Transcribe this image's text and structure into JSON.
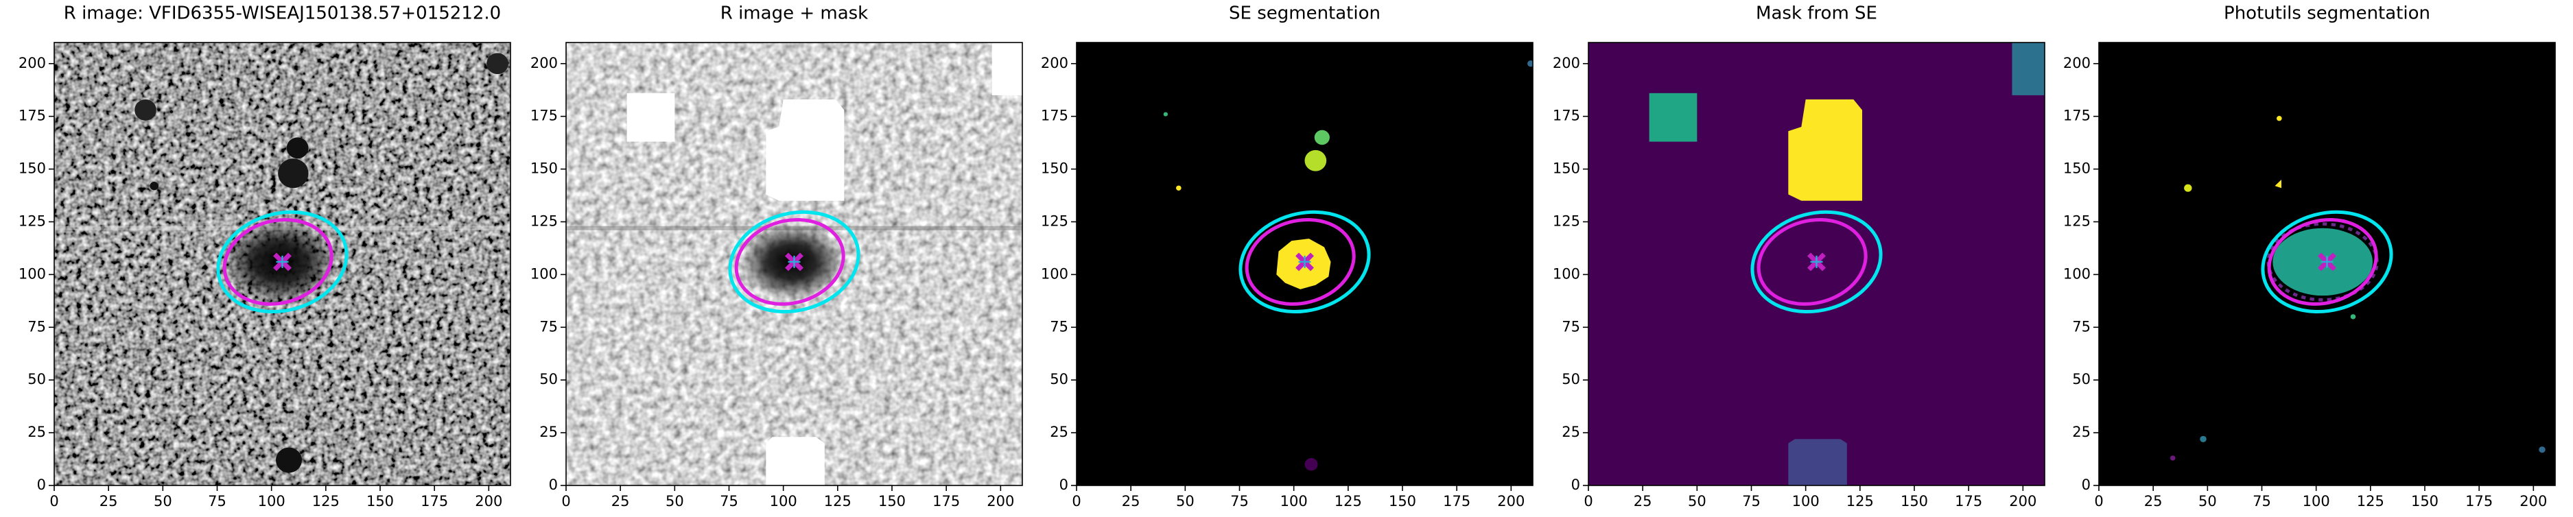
{
  "chart_data": [
    {
      "type": "image",
      "title": "R image: VFID6355-WISEAJ150138.57+015212.0",
      "xlim": [
        0,
        210
      ],
      "ylim": [
        0,
        210
      ],
      "xticks": [
        0,
        25,
        50,
        75,
        100,
        125,
        150,
        175,
        200
      ],
      "yticks": [
        0,
        25,
        50,
        75,
        100,
        125,
        150,
        175,
        200
      ],
      "ellipses": [
        {
          "color": "#00e5ee",
          "center": [
            105,
            106
          ],
          "width": 60,
          "height": 46,
          "angle": 15
        },
        {
          "color": "#e020e0",
          "center": [
            103,
            106
          ],
          "width": 50,
          "height": 39,
          "angle": 15
        }
      ],
      "marker": {
        "x": 105,
        "y": 106,
        "color": "#c020c0"
      }
    },
    {
      "type": "image",
      "title": "R image + mask",
      "xlim": [
        0,
        210
      ],
      "ylim": [
        0,
        210
      ],
      "xticks": [
        0,
        25,
        50,
        75,
        100,
        125,
        150,
        175,
        200
      ],
      "yticks": [
        0,
        25,
        50,
        75,
        100,
        125,
        150,
        175,
        200
      ],
      "ellipses": [
        {
          "color": "#00e5ee",
          "center": [
            105,
            106
          ],
          "width": 60,
          "height": 46,
          "angle": 15
        },
        {
          "color": "#e020e0",
          "center": [
            103,
            106
          ],
          "width": 50,
          "height": 39,
          "angle": 15
        }
      ],
      "marker": {
        "x": 105,
        "y": 106,
        "color": "#c020c0"
      }
    },
    {
      "type": "image",
      "title": "SE segmentation",
      "xlim": [
        0,
        210
      ],
      "ylim": [
        0,
        210
      ],
      "xticks": [
        0,
        25,
        50,
        75,
        100,
        125,
        150,
        175,
        200
      ],
      "yticks": [
        0,
        25,
        50,
        75,
        100,
        125,
        150,
        175,
        200
      ],
      "ellipses": [
        {
          "color": "#00e5ee",
          "center": [
            105,
            106
          ],
          "width": 60,
          "height": 46,
          "angle": 15
        },
        {
          "color": "#e020e0",
          "center": [
            103,
            106
          ],
          "width": 50,
          "height": 39,
          "angle": 15
        }
      ],
      "marker": {
        "x": 105,
        "y": 106,
        "color": "#c020c0"
      }
    },
    {
      "type": "image",
      "title": "Mask from SE",
      "xlim": [
        0,
        210
      ],
      "ylim": [
        0,
        210
      ],
      "xticks": [
        0,
        25,
        50,
        75,
        100,
        125,
        150,
        175,
        200
      ],
      "yticks": [
        0,
        25,
        50,
        75,
        100,
        125,
        150,
        175,
        200
      ],
      "ellipses": [
        {
          "color": "#00e5ee",
          "center": [
            105,
            106
          ],
          "width": 60,
          "height": 46,
          "angle": 15
        },
        {
          "color": "#e020e0",
          "center": [
            103,
            106
          ],
          "width": 50,
          "height": 39,
          "angle": 15
        }
      ],
      "marker": {
        "x": 105,
        "y": 106,
        "color": "#c020c0"
      }
    },
    {
      "type": "image",
      "title": "Photutils segmentation",
      "xlim": [
        0,
        210
      ],
      "ylim": [
        0,
        210
      ],
      "xticks": [
        0,
        25,
        50,
        75,
        100,
        125,
        150,
        175,
        200
      ],
      "yticks": [
        0,
        25,
        50,
        75,
        100,
        125,
        150,
        175,
        200
      ],
      "ellipses": [
        {
          "color": "#00e5ee",
          "center": [
            105,
            106
          ],
          "width": 60,
          "height": 46,
          "angle": 15
        },
        {
          "color": "#e020e0",
          "center": [
            103,
            106
          ],
          "width": 50,
          "height": 39,
          "angle": 15
        }
      ],
      "marker": {
        "x": 105,
        "y": 106,
        "color": "#c020c0"
      }
    }
  ]
}
